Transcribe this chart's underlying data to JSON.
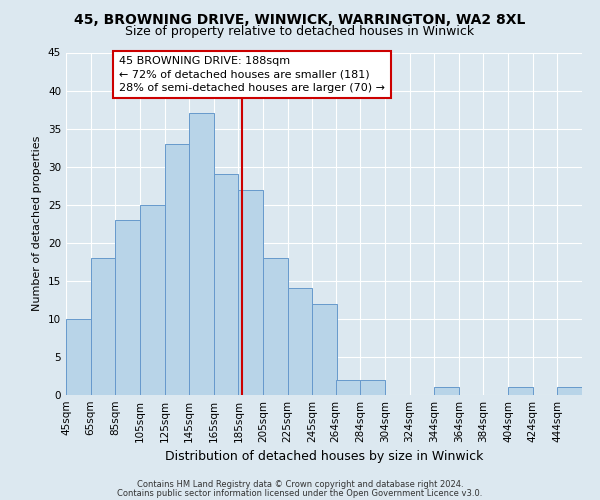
{
  "title": "45, BROWNING DRIVE, WINWICK, WARRINGTON, WA2 8XL",
  "subtitle": "Size of property relative to detached houses in Winwick",
  "xlabel": "Distribution of detached houses by size in Winwick",
  "ylabel": "Number of detached properties",
  "bar_labels": [
    "45sqm",
    "65sqm",
    "85sqm",
    "105sqm",
    "125sqm",
    "145sqm",
    "165sqm",
    "185sqm",
    "205sqm",
    "225sqm",
    "245sqm",
    "264sqm",
    "284sqm",
    "304sqm",
    "324sqm",
    "344sqm",
    "364sqm",
    "384sqm",
    "404sqm",
    "424sqm",
    "444sqm"
  ],
  "bar_left_edges": [
    45,
    65,
    85,
    105,
    125,
    145,
    165,
    185,
    205,
    225,
    245,
    264,
    284,
    304,
    324,
    344,
    364,
    384,
    404,
    424,
    444
  ],
  "bar_widths": [
    20,
    20,
    20,
    20,
    20,
    20,
    20,
    20,
    20,
    20,
    20,
    20,
    20,
    20,
    20,
    20,
    20,
    20,
    20,
    20,
    20
  ],
  "bar_values": [
    10,
    18,
    23,
    25,
    33,
    37,
    29,
    27,
    18,
    14,
    12,
    2,
    2,
    0,
    0,
    1,
    0,
    0,
    1,
    0,
    1
  ],
  "bar_color": "#b8d4e8",
  "bar_edge_color": "#6699cc",
  "marker_x": 188,
  "marker_color": "#cc0000",
  "annotation_line1": "45 BROWNING DRIVE: 188sqm",
  "annotation_line2": "← 72% of detached houses are smaller (181)",
  "annotation_line3": "28% of semi-detached houses are larger (70) →",
  "annotation_box_edge": "#cc0000",
  "ylim": [
    0,
    45
  ],
  "yticks": [
    0,
    5,
    10,
    15,
    20,
    25,
    30,
    35,
    40,
    45
  ],
  "xlim_left": 45,
  "xlim_right": 464,
  "bg_color": "#dce8f0",
  "plot_bg_color": "#dce8f0",
  "grid_color": "#ffffff",
  "title_fontsize": 10,
  "subtitle_fontsize": 9,
  "ylabel_fontsize": 8,
  "xlabel_fontsize": 9,
  "tick_fontsize": 7.5,
  "annotation_fontsize": 8,
  "footer_line1": "Contains HM Land Registry data © Crown copyright and database right 2024.",
  "footer_line2": "Contains public sector information licensed under the Open Government Licence v3.0.",
  "footer_fontsize": 6.0
}
